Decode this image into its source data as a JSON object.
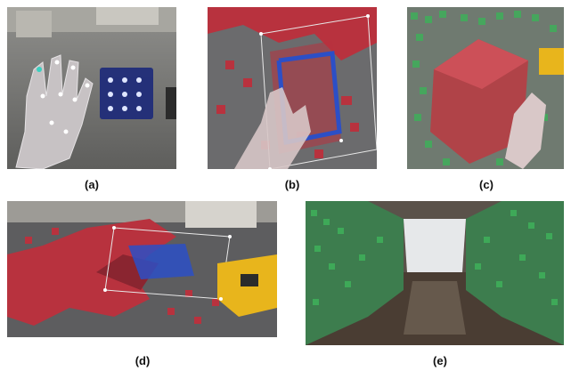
{
  "figure": {
    "panels": [
      {
        "id": "a",
        "caption": "(a)",
        "scene": "hand with joint markers next to a floating holographic menu panel over a lab floor"
      },
      {
        "id": "b",
        "caption": "(b)",
        "scene": "hand selecting a region of red voxel blocks inside a wireframe box with blue highlighted voxels"
      },
      {
        "id": "c",
        "caption": "(c)",
        "scene": "translucent red cube held by a hand amid green voxels with a yellow robot"
      },
      {
        "id": "d",
        "caption": "(d)",
        "scene": "red voxel map on floor with wireframe selection box, blue voxels and a yellow robot"
      },
      {
        "id": "e",
        "caption": "(e)",
        "scene": "long corridor with green voxel walls on both sides"
      }
    ]
  },
  "colors": {
    "red_voxel": "#b8323e",
    "green_voxel": "#3fae5a",
    "blue_voxel": "#2c4fc6",
    "robot_yellow": "#e8b51c",
    "menu_blue": "#1d2a7a",
    "floor": "#5d5d5f"
  }
}
